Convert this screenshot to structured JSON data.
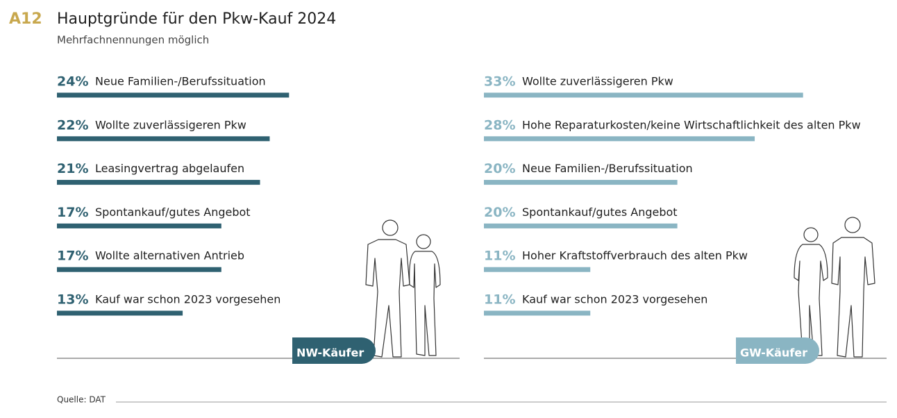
{
  "label": "A12",
  "title": "Hauptgründe für den Pkw-Kauf 2024",
  "subtitle": "Mehrfachnennungen möglich",
  "source": "Quelle: DAT",
  "chart_data": [
    {
      "type": "bar",
      "orientation": "horizontal",
      "group_label": "NW-Käufer",
      "color": "#2f6171",
      "categories": [
        "Neue Familien-/Berufssituation",
        "Wollte zuverlässigeren Pkw",
        "Leasingvertrag abgelaufen",
        "Spontankauf/gutes Angebot",
        "Wollte alternativen Antrieb",
        "Kauf war schon 2023 vorgesehen"
      ],
      "values": [
        24,
        22,
        21,
        17,
        17,
        13
      ],
      "value_labels": [
        "24%",
        "22%",
        "21%",
        "17%",
        "17%",
        "13%"
      ]
    },
    {
      "type": "bar",
      "orientation": "horizontal",
      "group_label": "GW-Käufer",
      "color": "#8ab5c3",
      "categories": [
        "Wollte zuverlässigeren Pkw",
        "Hohe Reparaturkosten/keine Wirtschaftlichkeit des alten Pkw",
        "Neue Familien-/Berufssituation",
        "Spontankauf/gutes Angebot",
        "Hoher Kraftstoffverbrauch des alten Pkw",
        "Kauf war schon 2023 vorgesehen"
      ],
      "values": [
        33,
        28,
        20,
        20,
        11,
        11
      ],
      "value_labels": [
        "33%",
        "28%",
        "20%",
        "20%",
        "11%",
        "11%"
      ]
    }
  ]
}
